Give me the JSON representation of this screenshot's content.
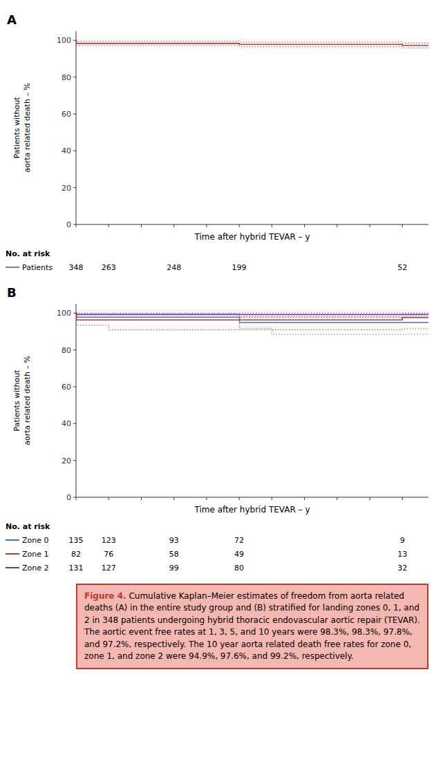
{
  "chart_data": [
    {
      "type": "step",
      "title": "A",
      "xlabel": "Time after hybrid TEVAR – y",
      "ylabel": "Patients without\naorta related death – %",
      "xlim": [
        0,
        10.8
      ],
      "ylim": [
        0,
        105
      ],
      "xticks": [
        0,
        1,
        2,
        3,
        4,
        5,
        6,
        7,
        8,
        9,
        10
      ],
      "yticks": [
        0,
        20,
        40,
        60,
        80,
        100
      ],
      "tick_labels": "y",
      "grid": false,
      "series": [
        {
          "color": "#c0392b",
          "x": [
            0,
            0.01,
            1,
            2,
            3,
            4,
            5,
            5.01,
            6,
            7,
            8,
            9,
            10,
            10.8
          ],
          "values": [
            100,
            98.3,
            98.3,
            98.3,
            98.3,
            98.3,
            97.8,
            97.8,
            97.8,
            97.8,
            97.8,
            97.8,
            97.2,
            97.2
          ],
          "ci_upper": [
            100,
            99.5,
            99.5,
            99.5,
            99.5,
            99.5,
            99.1,
            99.1,
            99.1,
            99.1,
            99.1,
            99.1,
            98.5,
            98.5
          ],
          "ci_lower": [
            100,
            97.1,
            97.1,
            97.1,
            97.1,
            97.1,
            96.5,
            96.5,
            96.5,
            96.5,
            96.5,
            96.5,
            95.9,
            95.9
          ]
        }
      ],
      "risk_table": {
        "label": "No. at risk",
        "x": [
          0,
          1,
          3,
          5,
          10
        ],
        "rows": [
          {
            "name": "Patients",
            "color": "#7f7f7f",
            "values": [
              348,
              263,
              248,
              199,
              52
            ]
          }
        ]
      }
    },
    {
      "type": "step",
      "title": "B",
      "xlabel": "Time after hybrid TEVAR – y",
      "ylabel": "Patients without\naorta related death – %",
      "xlim": [
        0,
        10.8
      ],
      "ylim": [
        0,
        105
      ],
      "xticks": [
        0,
        1,
        2,
        3,
        4,
        5,
        6,
        7,
        8,
        9,
        10
      ],
      "yticks": [
        0,
        20,
        40,
        60,
        80,
        100
      ],
      "tick_labels": "y",
      "grid": false,
      "series": [
        {
          "color": "#4472c4",
          "x": [
            0,
            0.01,
            1,
            2,
            3,
            4,
            5,
            5.01,
            6,
            7,
            8,
            9,
            10,
            10.8
          ],
          "values": [
            100,
            97.8,
            97.8,
            97.8,
            97.8,
            97.8,
            97.8,
            94.9,
            94.9,
            94.9,
            94.9,
            94.9,
            94.9,
            94.9
          ],
          "ci_upper": [
            100,
            99.5,
            99.5,
            99.5,
            99.5,
            99.5,
            99.5,
            98.2,
            98.2,
            98.2,
            98.2,
            98.2,
            98.2,
            98.2
          ],
          "ci_lower": [
            100,
            96.1,
            96.1,
            96.1,
            96.1,
            96.1,
            96.1,
            91.6,
            88.5,
            88.5,
            88.5,
            88.5,
            88.5,
            88.5
          ]
        },
        {
          "color": "#c0392b",
          "x": [
            0,
            0.01,
            1,
            2,
            3,
            4,
            5,
            6,
            7,
            8,
            9,
            10,
            10.8
          ],
          "values": [
            100,
            96.3,
            96.3,
            96.3,
            96.3,
            96.3,
            96.3,
            96.3,
            96.3,
            96.3,
            96.3,
            97.6,
            97.6
          ],
          "ci_upper": [
            100,
            99.2,
            99.2,
            99.2,
            99.2,
            99.2,
            99.2,
            99.2,
            99.2,
            99.2,
            99.2,
            99.8,
            99.8
          ],
          "ci_lower": [
            100,
            93.4,
            91.0,
            91.0,
            91.0,
            91.0,
            91.0,
            91.0,
            91.0,
            91.0,
            91.0,
            91.5,
            91.5
          ]
        },
        {
          "color": "#7030a0",
          "x": [
            0,
            0.01,
            1,
            2,
            3,
            4,
            5,
            6,
            7,
            8,
            9,
            10,
            10.8
          ],
          "values": [
            100,
            99.2,
            99.2,
            99.2,
            99.2,
            99.2,
            99.2,
            99.2,
            99.2,
            99.2,
            99.2,
            99.2,
            99.2
          ],
          "ci_upper": [
            100,
            100,
            100,
            100,
            100,
            100,
            100,
            100,
            100,
            100,
            100,
            100,
            100
          ],
          "ci_lower": [
            100,
            97.7,
            97.7,
            97.7,
            97.7,
            97.7,
            97.7,
            97.7,
            97.7,
            97.7,
            97.7,
            97.7,
            97.7
          ]
        }
      ],
      "risk_table": {
        "label": "No. at risk",
        "x": [
          0,
          1,
          3,
          5,
          10
        ],
        "rows": [
          {
            "name": "Zone 0",
            "color": "#4472c4",
            "values": [
              135,
              123,
              93,
              72,
              9
            ]
          },
          {
            "name": "Zone 1",
            "color": "#c0392b",
            "values": [
              82,
              76,
              58,
              49,
              13
            ]
          },
          {
            "name": "Zone 2",
            "color": "#7030a0",
            "values": [
              131,
              127,
              99,
              80,
              32
            ]
          }
        ]
      }
    }
  ],
  "caption": {
    "title": "Figure 4.",
    "color": "#c0392b",
    "text": " Cumulative Kaplan–Meier estimates of freedom from aorta related deaths (A) in the entire study group and (B) stratified for landing zones 0, 1, and 2 in 348 patients undergoing hybrid thoracic endovascular aortic repair (TEVAR). The aortic event free rates at 1, 3, 5, and 10 years were 98.3%, 98.3%, 97.8%, and 97.2%, respectively. The 10 year aorta related death free rates for zone 0, zone 1, and zone 2 were 94.9%, 97.6%, and 99.2%, respectively."
  }
}
